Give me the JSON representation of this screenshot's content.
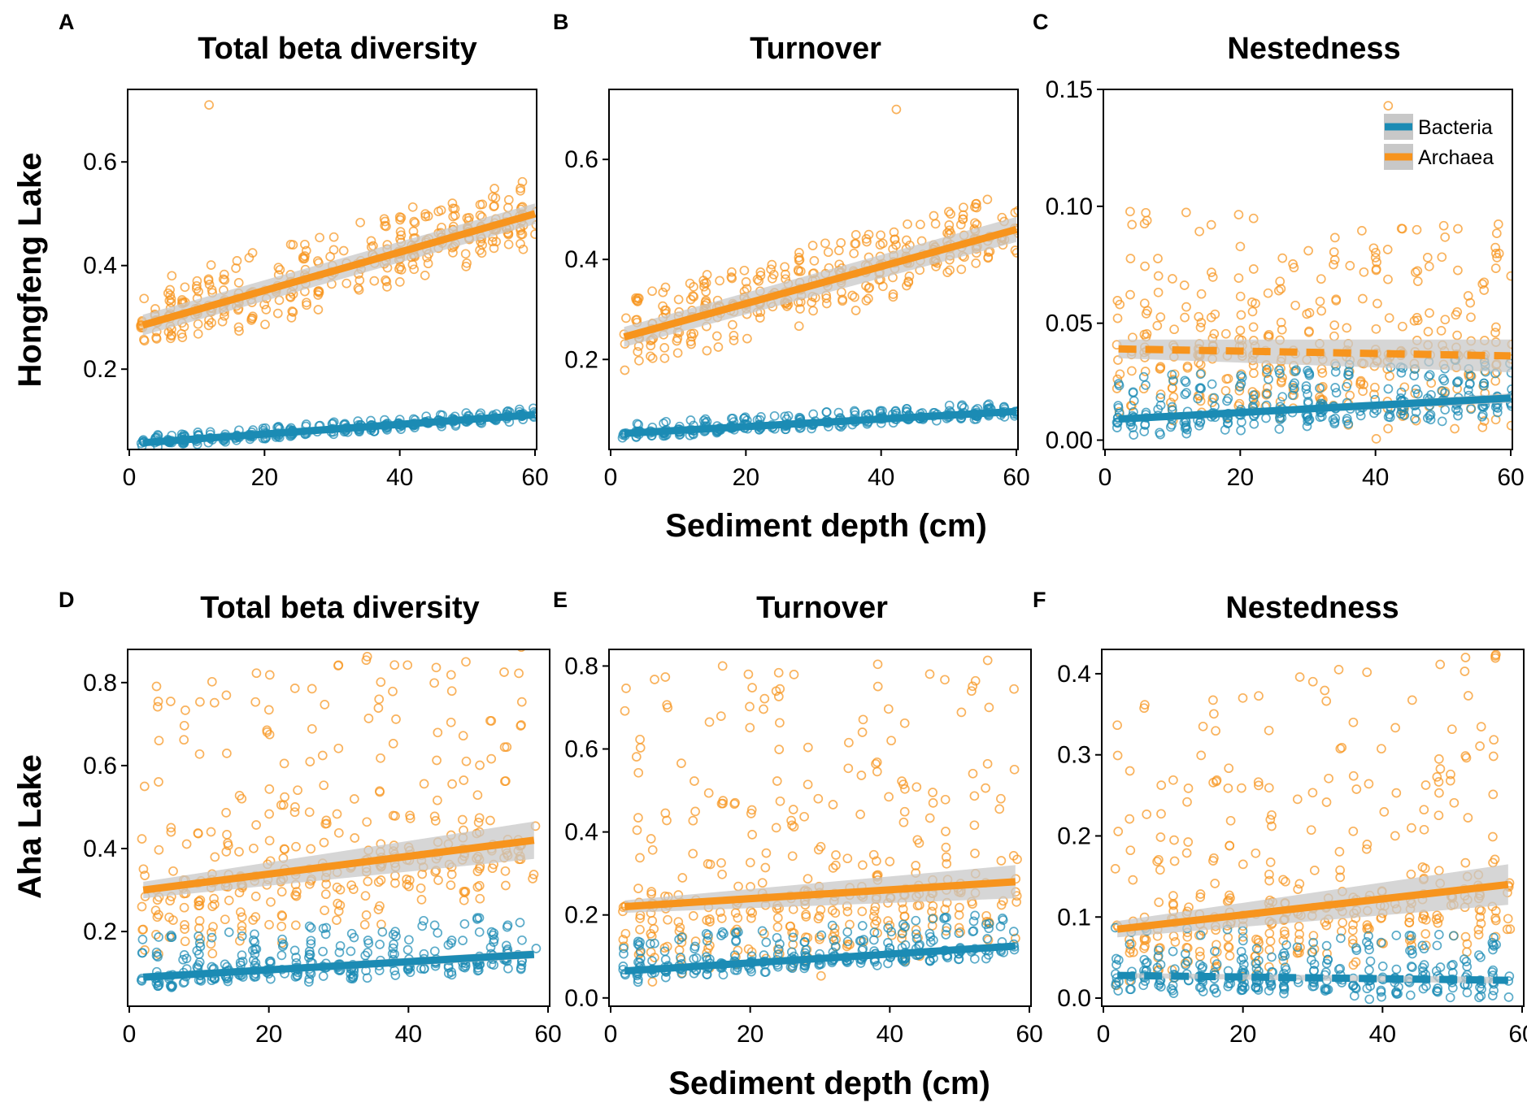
{
  "colors": {
    "bacteria": "#1b8bb4",
    "archaea": "#f7941d",
    "ci": "#c8c8c8"
  },
  "figure": {
    "row_labels": [
      "Hongfeng Lake",
      "Aha Lake"
    ],
    "xlabel": "Sediment depth (cm)",
    "legend": [
      "Bacteria",
      "Archaea"
    ]
  },
  "chart_data": [
    {
      "letter": "A",
      "title": "Total beta diversity",
      "type": "scatter",
      "xlim": [
        0,
        60
      ],
      "ylim": [
        0.045,
        0.74
      ],
      "yticks": [
        "0.2",
        "0.4",
        "0.6"
      ],
      "xticks": [
        "0",
        "20",
        "40",
        "60"
      ],
      "series": [
        {
          "name": "Archaea",
          "x_range": [
            2,
            60
          ],
          "trend": [
            0.285,
            0.5
          ],
          "ci": [
            0.02,
            0.02
          ],
          "dashed": false,
          "n": 360,
          "noise_lo": 0.07,
          "noise_hi": 0.08,
          "outlier_max": 0.71
        },
        {
          "name": "Bacteria",
          "x_range": [
            2,
            60
          ],
          "trend": [
            0.058,
            0.112
          ],
          "ci": [
            0.004,
            0.006
          ],
          "dashed": false,
          "n": 300,
          "noise_lo": 0.012,
          "noise_hi": 0.014
        }
      ]
    },
    {
      "letter": "B",
      "title": "Turnover",
      "type": "scatter",
      "xlim": [
        0,
        60
      ],
      "ylim": [
        0.02,
        0.74
      ],
      "yticks": [
        "0.2",
        "0.4",
        "0.6"
      ],
      "xticks": [
        "0",
        "20",
        "40",
        "60"
      ],
      "series": [
        {
          "name": "Archaea",
          "x_range": [
            2,
            60
          ],
          "trend": [
            0.245,
            0.46
          ],
          "ci": [
            0.02,
            0.025
          ],
          "dashed": false,
          "n": 360,
          "noise_lo": 0.08,
          "noise_hi": 0.08,
          "outlier_max": 0.7
        },
        {
          "name": "Bacteria",
          "x_range": [
            2,
            60
          ],
          "trend": [
            0.052,
            0.096
          ],
          "ci": [
            0.004,
            0.005
          ],
          "dashed": false,
          "n": 300,
          "noise_lo": 0.012,
          "noise_hi": 0.02
        }
      ]
    },
    {
      "letter": "C",
      "title": "Nestedness",
      "type": "scatter",
      "xlim": [
        0,
        60
      ],
      "ylim": [
        -0.004,
        0.15
      ],
      "yticks": [
        "0.00",
        "0.05",
        "0.10",
        "0.15"
      ],
      "xticks": [
        "0",
        "20",
        "40",
        "60"
      ],
      "series": [
        {
          "name": "Archaea",
          "x_range": [
            2,
            60
          ],
          "trend": [
            0.039,
            0.036
          ],
          "ci": [
            0.004,
            0.007
          ],
          "dashed": true,
          "n": 360,
          "noise_lo": 0.037,
          "noise_hi": 0.06,
          "outlier_max": 0.143
        },
        {
          "name": "Bacteria",
          "x_range": [
            2,
            60
          ],
          "trend": [
            0.009,
            0.018
          ],
          "ci": [
            0.001,
            0.002
          ],
          "dashed": false,
          "n": 300,
          "noise_lo": 0.009,
          "noise_hi": 0.018
        }
      ]
    },
    {
      "letter": "D",
      "title": "Total beta diversity",
      "type": "scatter",
      "xlim": [
        0,
        60
      ],
      "ylim": [
        0.02,
        0.88
      ],
      "yticks": [
        "0.2",
        "0.4",
        "0.6",
        "0.8"
      ],
      "xticks": [
        "0",
        "20",
        "40",
        "60"
      ],
      "series": [
        {
          "name": "Archaea",
          "x_range": [
            2,
            58
          ],
          "trend": [
            0.3,
            0.42
          ],
          "ci": [
            0.02,
            0.045
          ],
          "dashed": false,
          "n": 360,
          "noise_lo": 0.18,
          "noise_hi": 0.5,
          "outlier_max": 0.85
        },
        {
          "name": "Bacteria",
          "x_range": [
            2,
            58
          ],
          "trend": [
            0.09,
            0.145
          ],
          "ci": [
            0.008,
            0.01
          ],
          "dashed": false,
          "n": 300,
          "noise_lo": 0.04,
          "noise_hi": 0.1
        }
      ]
    },
    {
      "letter": "E",
      "title": "Turnover",
      "type": "scatter",
      "xlim": [
        0,
        60
      ],
      "ylim": [
        -0.02,
        0.84
      ],
      "yticks": [
        "0.0",
        "0.2",
        "0.4",
        "0.6",
        "0.8"
      ],
      "xticks": [
        "0",
        "20",
        "40",
        "60"
      ],
      "series": [
        {
          "name": "Archaea",
          "x_range": [
            2,
            58
          ],
          "trend": [
            0.22,
            0.28
          ],
          "ci": [
            0.015,
            0.04
          ],
          "dashed": false,
          "n": 360,
          "noise_lo": 0.2,
          "noise_hi": 0.55,
          "outlier_max": 0.8
        },
        {
          "name": "Bacteria",
          "x_range": [
            2,
            58
          ],
          "trend": [
            0.065,
            0.125
          ],
          "ci": [
            0.006,
            0.008
          ],
          "dashed": false,
          "n": 300,
          "noise_lo": 0.03,
          "noise_hi": 0.08
        }
      ]
    },
    {
      "letter": "F",
      "title": "Nestedness",
      "type": "scatter",
      "xlim": [
        0,
        60
      ],
      "ylim": [
        -0.01,
        0.43
      ],
      "yticks": [
        "0.0",
        "0.1",
        "0.2",
        "0.3",
        "0.4"
      ],
      "xticks": [
        "0",
        "20",
        "40",
        "60"
      ],
      "series": [
        {
          "name": "Archaea",
          "x_range": [
            2,
            58
          ],
          "trend": [
            0.085,
            0.14
          ],
          "ci": [
            0.01,
            0.025
          ],
          "dashed": false,
          "n": 360,
          "noise_lo": 0.085,
          "noise_hi": 0.3,
          "outlier_max": 0.42
        },
        {
          "name": "Bacteria",
          "x_range": [
            2,
            58
          ],
          "trend": [
            0.028,
            0.022
          ],
          "ci": [
            0.003,
            0.004
          ],
          "dashed": true,
          "n": 300,
          "noise_lo": 0.026,
          "noise_hi": 0.06
        }
      ]
    }
  ]
}
